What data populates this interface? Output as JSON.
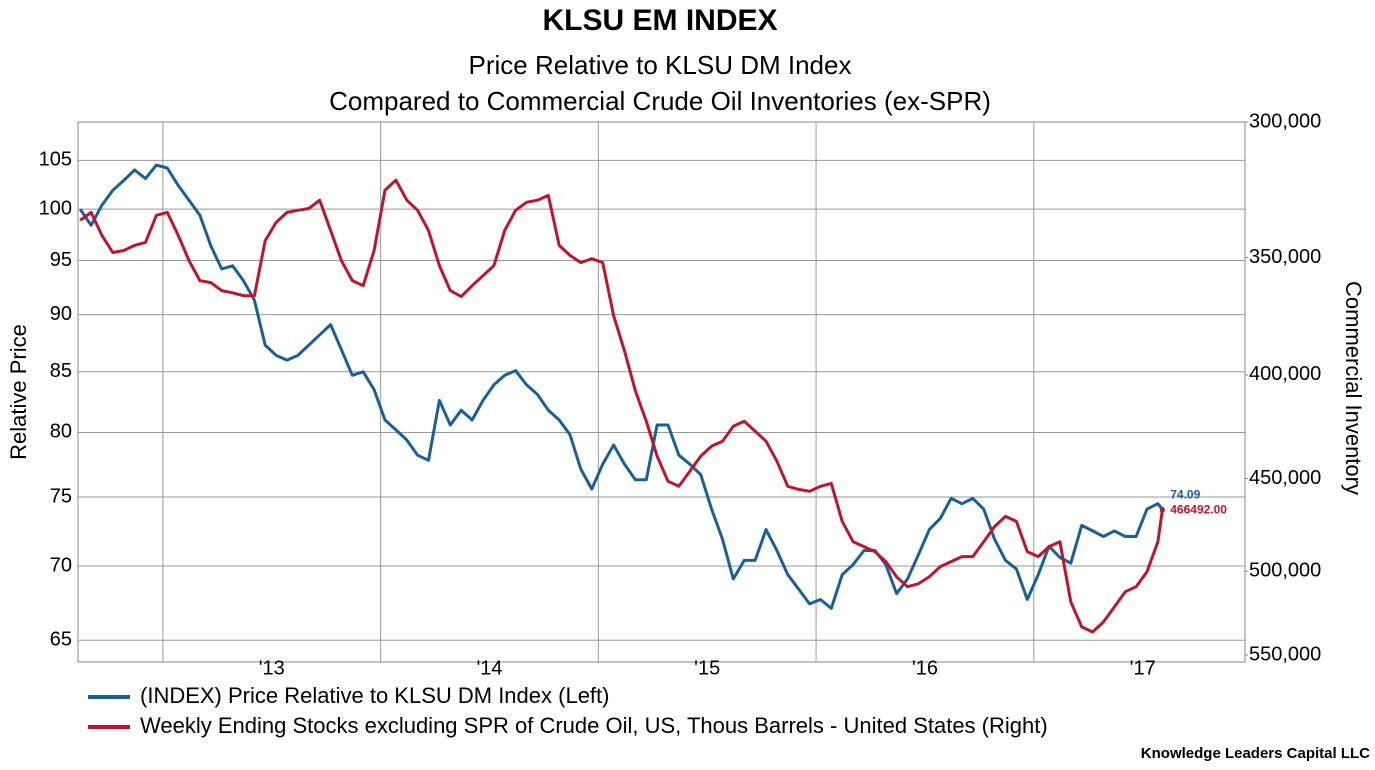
{
  "chart_data": {
    "type": "line",
    "title": "KLSU EM INDEX",
    "subtitle": [
      "Price Relative to KLSU DM Index",
      "Compared to Commercial Crude Oil Inventories (ex-SPR)"
    ],
    "y_label": "Relative Price",
    "y2_label": "Commercial Inventory",
    "source": "Knowledge Leaders Capital LLC",
    "xlim": [
      2012.61,
      2017.97
    ],
    "xticks": [
      {
        "value": 2013,
        "label": "'13"
      },
      {
        "value": 2014,
        "label": "'14"
      },
      {
        "value": 2015,
        "label": "'15"
      },
      {
        "value": 2016,
        "label": "'16"
      },
      {
        "value": 2017,
        "label": "'17"
      }
    ],
    "ylim": [
      63.6,
      109.1
    ],
    "yticks": [
      65,
      70,
      75,
      80,
      85,
      90,
      95,
      100,
      105
    ],
    "ylog": true,
    "y2lim": [
      300000,
      554400
    ],
    "y2ticks": [
      {
        "value": 300000,
        "label": "300,000"
      },
      {
        "value": 350000,
        "label": "350,000"
      },
      {
        "value": 400000,
        "label": "400,000"
      },
      {
        "value": 450000,
        "label": "450,000"
      },
      {
        "value": 500000,
        "label": "500,000"
      },
      {
        "value": 550000,
        "label": "550,000"
      }
    ],
    "y2log": true,
    "y2inverted": true,
    "grid": true,
    "legend": "bottom",
    "x": [
      2012.62,
      2012.67,
      2012.72,
      2012.77,
      2012.82,
      2012.87,
      2012.92,
      2012.97,
      2013.02,
      2013.07,
      2013.12,
      2013.17,
      2013.22,
      2013.27,
      2013.32,
      2013.37,
      2013.42,
      2013.47,
      2013.52,
      2013.57,
      2013.62,
      2013.67,
      2013.72,
      2013.77,
      2013.82,
      2013.87,
      2013.92,
      2013.97,
      2014.02,
      2014.07,
      2014.12,
      2014.17,
      2014.22,
      2014.27,
      2014.32,
      2014.37,
      2014.42,
      2014.47,
      2014.52,
      2014.57,
      2014.62,
      2014.67,
      2014.72,
      2014.77,
      2014.82,
      2014.87,
      2014.92,
      2014.97,
      2015.02,
      2015.07,
      2015.12,
      2015.17,
      2015.22,
      2015.27,
      2015.32,
      2015.37,
      2015.42,
      2015.47,
      2015.52,
      2015.57,
      2015.62,
      2015.67,
      2015.72,
      2015.77,
      2015.82,
      2015.87,
      2015.92,
      2015.97,
      2016.02,
      2016.07,
      2016.12,
      2016.17,
      2016.22,
      2016.27,
      2016.32,
      2016.37,
      2016.42,
      2016.47,
      2016.52,
      2016.57,
      2016.62,
      2016.67,
      2016.72,
      2016.77,
      2016.82,
      2016.87,
      2016.92,
      2016.97,
      2017.02,
      2017.07,
      2017.12,
      2017.17,
      2017.22,
      2017.27,
      2017.32,
      2017.37,
      2017.42,
      2017.47,
      2017.52,
      2017.57,
      2017.59
    ],
    "series": [
      {
        "name": "(INDEX) Price Relative to KLSU DM Index  (Left)",
        "color": "#1b5e9e",
        "axis": "y",
        "values": [
          100,
          98.4,
          100.4,
          101.9,
          102.9,
          104,
          103.1,
          104.5,
          104.2,
          102.4,
          100.9,
          99.4,
          96.4,
          94.2,
          94.5,
          93.1,
          91.3,
          87.3,
          86.4,
          86.0,
          86.4,
          87.3,
          88.2,
          89.1,
          86.9,
          84.7,
          85.0,
          83.5,
          81.0,
          80.2,
          79.4,
          78.2,
          77.8,
          82.6,
          80.6,
          81.8,
          81.0,
          82.6,
          83.9,
          84.7,
          85.1,
          83.9,
          83.1,
          81.8,
          81.0,
          79.8,
          77.1,
          75.6,
          77.5,
          79.0,
          77.5,
          76.3,
          76.3,
          80.6,
          80.6,
          78.2,
          77.5,
          76.7,
          74.1,
          71.9,
          69.1,
          70.4,
          70.4,
          72.6,
          71.1,
          69.4,
          68.4,
          67.4,
          67.7,
          67.1,
          69.4,
          70.1,
          71.1,
          71.1,
          70.1,
          68.1,
          69.1,
          70.8,
          72.6,
          73.4,
          74.9,
          74.5,
          74.9,
          74.1,
          71.9,
          70.4,
          69.8,
          67.7,
          69.4,
          71.4,
          70.6,
          70.2,
          72.9,
          72.5,
          72.1,
          72.5,
          72.1,
          72.1,
          74.1,
          74.5,
          74.09
        ]
      },
      {
        "name": "Weekly Ending Stocks excluding SPR of Crude Oil, US, Thous Barrels - United States  (Right)",
        "color": "#c0142e",
        "axis": "y2",
        "values": [
          335500,
          332500,
          341300,
          348000,
          347200,
          345200,
          344000,
          333600,
          332500,
          341300,
          351200,
          359300,
          360100,
          363400,
          364300,
          365500,
          365500,
          343300,
          336300,
          332500,
          331700,
          331000,
          327900,
          339400,
          351200,
          359300,
          361400,
          347200,
          324200,
          320500,
          327900,
          331700,
          339400,
          353200,
          363400,
          365900,
          361400,
          357300,
          353200,
          339400,
          331700,
          328700,
          327900,
          326100,
          345200,
          349200,
          352000,
          350400,
          352000,
          373900,
          389200,
          407300,
          421600,
          438700,
          451400,
          454000,
          446300,
          438700,
          433700,
          431300,
          424000,
          421600,
          426400,
          431300,
          441200,
          454000,
          455600,
          456600,
          454000,
          452500,
          472500,
          483500,
          486200,
          489000,
          494600,
          503200,
          508900,
          507200,
          503200,
          497400,
          494600,
          491800,
          491800,
          483500,
          475200,
          469800,
          472500,
          489000,
          491800,
          486200,
          483500,
          517700,
          532700,
          535800,
          529700,
          520700,
          511800,
          508900,
          500300,
          483500,
          466492
        ],
        "value_labels": [
          null,
          null,
          null,
          null,
          null,
          null,
          null,
          null,
          null,
          null,
          null,
          null,
          null,
          null,
          null,
          null,
          null,
          null,
          null,
          null,
          null,
          null,
          null,
          null,
          null,
          null,
          null,
          null,
          null,
          null,
          null,
          null,
          null,
          null,
          null,
          null,
          null,
          null,
          null,
          null,
          null,
          null,
          null,
          null,
          null,
          null,
          null,
          null,
          null,
          null,
          null,
          null,
          null,
          null,
          null,
          null,
          null,
          null,
          null,
          null,
          null,
          null,
          null,
          null,
          null,
          null,
          null,
          null,
          null,
          null,
          null,
          null,
          null,
          null,
          null,
          null,
          null,
          null,
          null,
          null,
          null,
          null,
          null,
          null,
          null,
          null,
          null,
          null,
          null,
          null,
          null,
          null,
          null,
          null,
          null,
          null,
          null,
          null,
          null,
          null,
          "466492.00"
        ]
      }
    ]
  }
}
